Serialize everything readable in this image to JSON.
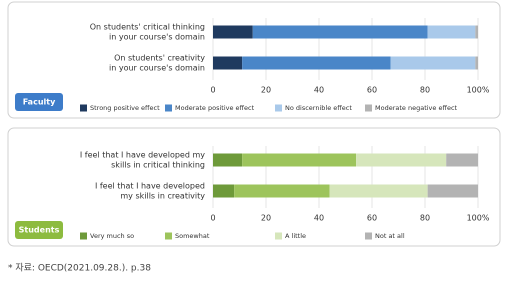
{
  "chart_data": [
    {
      "type": "stacked-hbar",
      "panel_label": "Faculty",
      "categories": [
        [
          "On students' critical thinking",
          "in your course's domain"
        ],
        [
          "On students' creativity",
          "in your course's domain"
        ]
      ],
      "series": [
        {
          "name": "Strong positive effect",
          "color": "#1f3a5f",
          "values": [
            15,
            11
          ]
        },
        {
          "name": "Moderate positive effect",
          "color": "#4a86c8",
          "values": [
            66,
            56
          ]
        },
        {
          "name": "No discernible effect",
          "color": "#a9c9ea",
          "values": [
            18,
            32
          ]
        },
        {
          "name": "Moderate negative effect",
          "color": "#b3b3b3",
          "values": [
            1,
            1
          ]
        }
      ],
      "xlim": [
        0,
        100
      ],
      "xticks": [
        0,
        20,
        40,
        60,
        80,
        {
          "value": 100,
          "label": "100%"
        }
      ],
      "grid": true
    },
    {
      "type": "stacked-hbar",
      "panel_label": "Students",
      "categories": [
        [
          "I feel that I have developed my",
          "skills in critical thinking"
        ],
        [
          "I feel that I have developed",
          "my skills in creativity"
        ]
      ],
      "series": [
        {
          "name": "Very much so",
          "color": "#6e9a3a",
          "values": [
            11,
            8
          ]
        },
        {
          "name": "Somewhat",
          "color": "#9dc45c",
          "values": [
            43,
            36
          ]
        },
        {
          "name": "A little",
          "color": "#d6e6bb",
          "values": [
            34,
            37
          ]
        },
        {
          "name": "Not at all",
          "color": "#b3b3b3",
          "values": [
            12,
            19
          ]
        }
      ],
      "xlim": [
        0,
        100
      ],
      "xticks": [
        0,
        20,
        40,
        60,
        80,
        {
          "value": 100,
          "label": "100%"
        }
      ],
      "grid": true
    }
  ],
  "footnote": "* 자료: OECD(2021.09.28.). p.38"
}
